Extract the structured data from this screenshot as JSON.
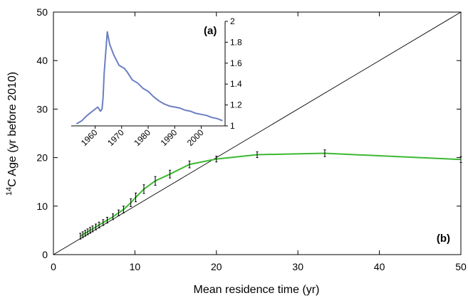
{
  "chart_data": [
    {
      "type": "line",
      "panel_label": "(b)",
      "xlabel": "Mean residence time (yr)",
      "ylabel_super": "14",
      "ylabel_rest": "C Age (yr before 2010)",
      "xlim": [
        0,
        50
      ],
      "ylim": [
        0,
        50
      ],
      "x_ticks": [
        0,
        10,
        20,
        30,
        40,
        50
      ],
      "y_ticks": [
        0,
        10,
        20,
        30,
        40,
        50
      ],
      "grid": false,
      "series": [
        {
          "role": "reference-1to1",
          "color": "#000000",
          "x": [
            0,
            50
          ],
          "y": [
            0,
            50
          ]
        },
        {
          "role": "data-with-error-bars",
          "color": "#3cb832",
          "x": [
            3.3,
            3.6,
            3.9,
            4.2,
            4.5,
            4.8,
            5.2,
            5.6,
            6.1,
            6.6,
            7.3,
            8.0,
            8.6,
            9.5,
            10.1,
            11.1,
            12.5,
            14.3,
            16.7,
            20.0,
            25.0,
            33.3,
            50.0
          ],
          "y": [
            3.8,
            4.1,
            4.4,
            4.7,
            5.0,
            5.3,
            5.7,
            6.1,
            6.6,
            7.1,
            7.8,
            8.6,
            9.3,
            10.7,
            11.8,
            13.5,
            15.2,
            16.6,
            18.6,
            19.7,
            20.6,
            20.9,
            19.6
          ],
          "error": [
            0.6,
            0.6,
            0.6,
            0.6,
            0.6,
            0.6,
            0.6,
            0.6,
            0.6,
            0.6,
            0.6,
            0.6,
            0.7,
            0.8,
            0.9,
            0.9,
            0.9,
            0.8,
            0.7,
            0.6,
            0.6,
            0.7,
            0.6
          ]
        }
      ]
    },
    {
      "type": "line",
      "panel_label": "(a)",
      "xlim": [
        1951,
        2009
      ],
      "ylim": [
        1,
        2
      ],
      "x_ticks": [
        1960,
        1970,
        1980,
        1990,
        2000
      ],
      "y_ticks": [
        1,
        1.2,
        1.4,
        1.6,
        1.8,
        2
      ],
      "y_axis_side": "right",
      "grid": false,
      "series": [
        {
          "color": "#6b7fc4",
          "x": [
            1953,
            1955,
            1957,
            1959,
            1960,
            1961,
            1962,
            1962.6,
            1963,
            1963.4,
            1964.6,
            1965.5,
            1967,
            1969,
            1971,
            1972,
            1974,
            1976,
            1978,
            1980,
            1982,
            1984,
            1986,
            1988,
            1990,
            1992,
            1994,
            1996,
            1998,
            2000,
            2002,
            2004,
            2006,
            2008
          ],
          "y": [
            1.02,
            1.05,
            1.1,
            1.14,
            1.16,
            1.18,
            1.14,
            1.16,
            1.27,
            1.5,
            1.9,
            1.78,
            1.68,
            1.58,
            1.55,
            1.52,
            1.44,
            1.41,
            1.36,
            1.33,
            1.28,
            1.24,
            1.21,
            1.19,
            1.18,
            1.17,
            1.15,
            1.14,
            1.12,
            1.11,
            1.1,
            1.08,
            1.07,
            1.05
          ]
        }
      ]
    }
  ]
}
